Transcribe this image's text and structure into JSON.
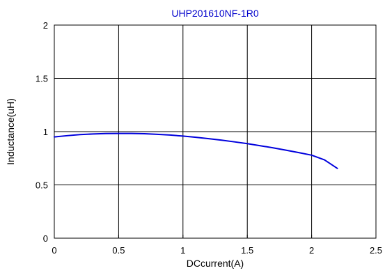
{
  "chart_data": {
    "type": "line",
    "title": "UHP201610NF-1R0",
    "xlabel": "DCcurrent(A)",
    "ylabel": "Inductance(uH)",
    "xlim": [
      0,
      2.5
    ],
    "ylim": [
      0,
      2
    ],
    "x_ticks": [
      0,
      0.5,
      1,
      1.5,
      2,
      2.5
    ],
    "y_ticks": [
      0,
      0.5,
      1,
      1.5,
      2
    ],
    "x_tick_labels": [
      "0",
      "0.5",
      "1",
      "1.5",
      "2",
      "2.5"
    ],
    "y_tick_labels": [
      "0",
      "0.5",
      "1",
      "1.5",
      "2"
    ],
    "grid": true,
    "series": [
      {
        "color": "#0000dd",
        "x": [
          0,
          0.1,
          0.2,
          0.3,
          0.4,
          0.5,
          0.6,
          0.7,
          0.8,
          0.9,
          1.0,
          1.1,
          1.2,
          1.3,
          1.4,
          1.5,
          1.6,
          1.7,
          1.8,
          1.9,
          2.0,
          2.1,
          2.2
        ],
        "y": [
          0.95,
          0.962,
          0.972,
          0.978,
          0.982,
          0.983,
          0.983,
          0.98,
          0.975,
          0.968,
          0.958,
          0.947,
          0.934,
          0.92,
          0.904,
          0.887,
          0.868,
          0.848,
          0.826,
          0.803,
          0.779,
          0.735,
          0.655
        ]
      }
    ],
    "colors": {
      "title": "#0000cc",
      "axis": "#000000",
      "grid": "#000000"
    }
  }
}
